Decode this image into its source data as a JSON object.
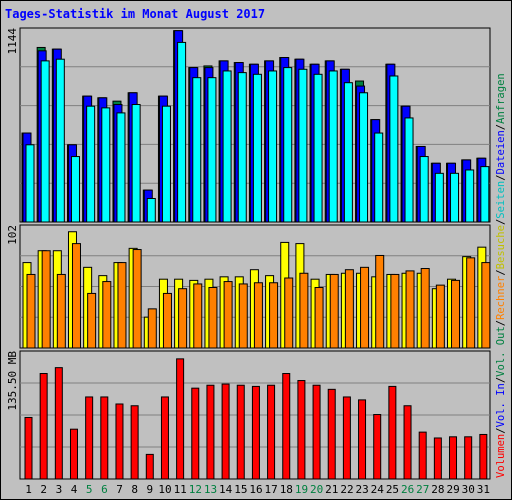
{
  "title": "Tages-Statistik im Monat August 2017",
  "colors": {
    "hits": "#008040",
    "files": "#0000ff",
    "pages": "#00ffff",
    "visits": "#ffff00",
    "sites": "#ff8000",
    "volume": "#ff0000",
    "grid": "#808080",
    "day_weekday": "#000000",
    "day_weekend": "#008040"
  },
  "right_labels": {
    "top": [
      {
        "text": "Anfragen",
        "color": "#008040"
      },
      {
        "text": "/",
        "color": "#000000"
      },
      {
        "text": "Dateien",
        "color": "#0000ff"
      },
      {
        "text": "/",
        "color": "#000000"
      },
      {
        "text": "Seiten",
        "color": "#00c0c0"
      },
      {
        "text": "/",
        "color": "#000000"
      },
      {
        "text": "Besuche",
        "color": "#c0c000"
      },
      {
        "text": "/",
        "color": "#000000"
      },
      {
        "text": "Rechner",
        "color": "#ff8000"
      },
      {
        "text": "/",
        "color": "#000000"
      },
      {
        "text": "Vol. Out",
        "color": "#008040"
      },
      {
        "text": "/",
        "color": "#000000"
      },
      {
        "text": "Vol. In",
        "color": "#0000ff"
      },
      {
        "text": "/",
        "color": "#000000"
      },
      {
        "text": "Volumen",
        "color": "#ff0000"
      }
    ]
  },
  "chart_data": [
    {
      "type": "bar",
      "panel": "hits",
      "ylabel": "1144",
      "ylim": [
        0,
        1144
      ],
      "categories": [
        "1",
        "2",
        "3",
        "4",
        "5",
        "6",
        "7",
        "8",
        "9",
        "10",
        "11",
        "12",
        "13",
        "14",
        "15",
        "16",
        "17",
        "18",
        "19",
        "20",
        "21",
        "22",
        "23",
        "24",
        "25",
        "26",
        "27",
        "28",
        "29",
        "30",
        "31"
      ],
      "weekend": [
        "5",
        "6",
        "12",
        "13",
        "19",
        "20",
        "26",
        "27"
      ],
      "series": [
        {
          "name": "Anfragen",
          "values": [
            530,
            1040,
            1030,
            460,
            750,
            740,
            720,
            770,
            190,
            750,
            1140,
            920,
            930,
            960,
            950,
            940,
            960,
            980,
            970,
            940,
            960,
            910,
            840,
            610,
            940,
            690,
            450,
            350,
            350,
            370,
            380
          ]
        },
        {
          "name": "Dateien",
          "values": [
            530,
            1020,
            1030,
            460,
            750,
            740,
            700,
            770,
            190,
            750,
            1140,
            920,
            920,
            960,
            950,
            940,
            960,
            980,
            970,
            940,
            960,
            910,
            810,
            610,
            940,
            690,
            450,
            350,
            350,
            370,
            380
          ]
        },
        {
          "name": "Seiten",
          "values": [
            460,
            960,
            970,
            390,
            690,
            680,
            650,
            700,
            140,
            690,
            1070,
            860,
            860,
            900,
            890,
            880,
            900,
            920,
            910,
            880,
            900,
            830,
            770,
            530,
            870,
            620,
            390,
            290,
            290,
            310,
            330
          ]
        }
      ]
    },
    {
      "type": "bar",
      "panel": "visits",
      "ylabel": "102",
      "ylim": [
        0,
        102
      ],
      "categories": [
        "1",
        "2",
        "3",
        "4",
        "5",
        "6",
        "7",
        "8",
        "9",
        "10",
        "11",
        "12",
        "13",
        "14",
        "15",
        "16",
        "17",
        "18",
        "19",
        "20",
        "21",
        "22",
        "23",
        "24",
        "25",
        "26",
        "27",
        "28",
        "29",
        "30",
        "31"
      ],
      "series": [
        {
          "name": "Besuche",
          "values": [
            72,
            82,
            82,
            98,
            68,
            61,
            72,
            84,
            26,
            58,
            58,
            57,
            58,
            60,
            60,
            66,
            61,
            89,
            88,
            58,
            62,
            63,
            63,
            60,
            62,
            63,
            63,
            50,
            58,
            77,
            85
          ]
        },
        {
          "name": "Rechner",
          "values": [
            62,
            82,
            62,
            88,
            46,
            56,
            72,
            83,
            33,
            46,
            50,
            54,
            51,
            56,
            54,
            55,
            55,
            59,
            63,
            51,
            62,
            66,
            68,
            78,
            62,
            65,
            67,
            53,
            57,
            76,
            72
          ]
        }
      ]
    },
    {
      "type": "bar",
      "panel": "volume",
      "ylabel": "135.50 MB",
      "ylim": [
        0,
        215
      ],
      "categories": [
        "1",
        "2",
        "3",
        "4",
        "5",
        "6",
        "7",
        "8",
        "9",
        "10",
        "11",
        "12",
        "13",
        "14",
        "15",
        "16",
        "17",
        "18",
        "19",
        "20",
        "21",
        "22",
        "23",
        "24",
        "25",
        "26",
        "27",
        "28",
        "29",
        "30",
        "31"
      ],
      "series": [
        {
          "name": "Volumen",
          "values": [
            105,
            180,
            190,
            85,
            140,
            140,
            128,
            125,
            42,
            140,
            205,
            155,
            160,
            162,
            160,
            158,
            160,
            180,
            168,
            160,
            153,
            140,
            135,
            110,
            158,
            125,
            80,
            70,
            72,
            72,
            76
          ]
        }
      ]
    }
  ]
}
